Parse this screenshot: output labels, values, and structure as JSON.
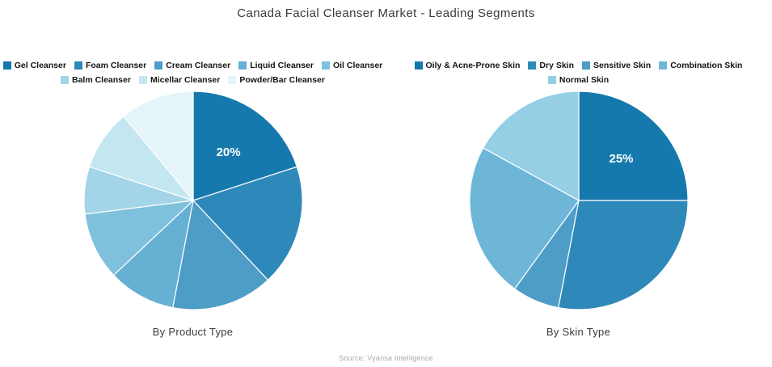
{
  "title": "Canada Facial Cleanser Market - Leading Segments",
  "source": "Source: Vyansa Intelligence",
  "label_color": "#ffffff",
  "chart_data": [
    {
      "type": "pie",
      "caption": "By Product Type",
      "labels": [
        "Gel Cleanser",
        "Foam Cleanser",
        "Cream Cleanser",
        "Liquid Cleanser",
        "Oil Cleanser",
        "Balm Cleanser",
        "Micellar Cleanser",
        "Powder/Bar Cleanser"
      ],
      "values": [
        20,
        18,
        15,
        10,
        10,
        7,
        9,
        11
      ],
      "colors": [
        "#1579ad",
        "#2e89ba",
        "#4d9dc7",
        "#66b0d3",
        "#7fc0dc",
        "#a3d4e7",
        "#c4e6f1",
        "#e4f4f9"
      ],
      "start_angle_deg": 0,
      "direction": "clockwise",
      "slice_labels": [
        {
          "index": 0,
          "text": "20%"
        }
      ],
      "legend_position": "top"
    },
    {
      "type": "pie",
      "caption": "By Skin Type",
      "labels": [
        "Oily & Acne-Prone Skin",
        "Dry Skin",
        "Sensitive Skin",
        "Combination Skin",
        "Normal Skin"
      ],
      "values": [
        25,
        28,
        7,
        23,
        17
      ],
      "colors": [
        "#1579ad",
        "#2e89ba",
        "#4d9dc7",
        "#6db6d8",
        "#95cfe5"
      ],
      "start_angle_deg": 0,
      "direction": "clockwise",
      "slice_labels": [
        {
          "index": 0,
          "text": "25%"
        }
      ],
      "legend_position": "top"
    }
  ]
}
